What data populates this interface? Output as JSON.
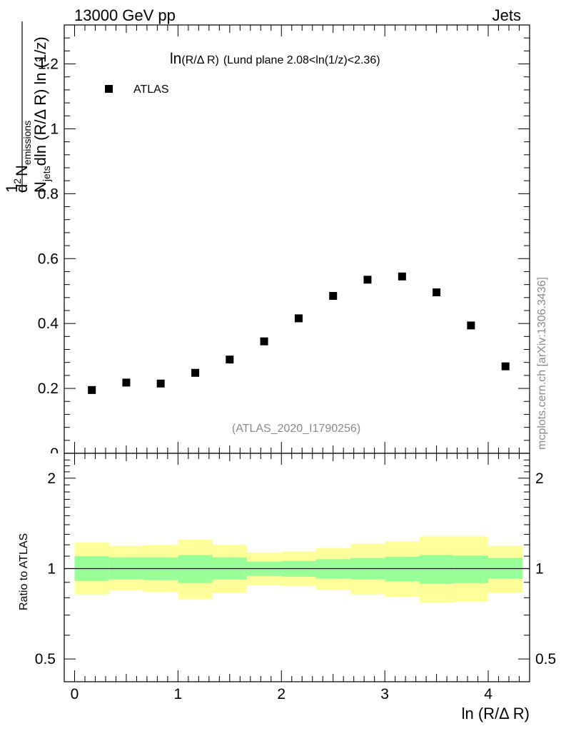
{
  "header": {
    "left": "13000 GeV pp",
    "right": "Jets"
  },
  "side_text": "mcplots.cern.ch [arXiv:1306.3436]",
  "analysis_id": "(ATLAS_2020_I1790256)",
  "chart_data": [
    {
      "type": "scatter",
      "title_ln": "ln",
      "title_arg": "(R/Δ R)",
      "title_rest": "(Lund plane 2.08<ln(1/z)<2.36)",
      "ylabel": {
        "prefix": "1",
        "N": "N",
        "jets": "jets",
        "dln": "dln (R/Δ R) ln (1/z)",
        "d2": "d",
        "two": "2",
        "Nem": "N",
        "emissions": "emissions"
      },
      "xlim": [
        -0.1,
        4.4
      ],
      "ylim": [
        0,
        1.32
      ],
      "yticks": [
        "0.2",
        "0.4",
        "0.6",
        "0.8",
        "1",
        "1.2"
      ],
      "y_zero_label": "0",
      "legend": {
        "label": "ATLAS",
        "position": "top-left"
      },
      "series": [
        {
          "name": "ATLAS",
          "x": [
            0.167,
            0.5,
            0.833,
            1.167,
            1.5,
            1.833,
            2.167,
            2.5,
            2.833,
            3.167,
            3.5,
            3.833,
            4.167
          ],
          "y": [
            0.195,
            0.218,
            0.215,
            0.248,
            0.289,
            0.345,
            0.416,
            0.485,
            0.535,
            0.545,
            0.496,
            0.394,
            0.268
          ]
        }
      ]
    },
    {
      "type": "area",
      "ylabel": "Ratio to ATLAS",
      "xlabel": "ln (R/Δ R)",
      "xlim": [
        -0.1,
        4.4
      ],
      "ylim": [
        0.42,
        2.42
      ],
      "log_y": true,
      "yticks": [
        "0.5",
        "1",
        "2"
      ],
      "xticks": [
        "0",
        "1",
        "2",
        "3",
        "4"
      ],
      "colors": {
        "stat": "#99ff99",
        "total": "#ffff99",
        "line": "#000000"
      },
      "bands": {
        "edges": [
          0.0,
          0.333,
          0.667,
          1.0,
          1.333,
          1.667,
          2.0,
          2.333,
          2.667,
          3.0,
          3.333,
          3.667,
          4.0,
          4.333
        ],
        "inner_lo": [
          0.91,
          0.92,
          0.915,
          0.895,
          0.92,
          0.945,
          0.94,
          0.925,
          0.92,
          0.905,
          0.89,
          0.895,
          0.925
        ],
        "inner_hi": [
          1.1,
          1.09,
          1.09,
          1.11,
          1.09,
          1.055,
          1.06,
          1.075,
          1.085,
          1.095,
          1.11,
          1.105,
          1.085
        ],
        "outer_lo": [
          0.82,
          0.845,
          0.835,
          0.79,
          0.83,
          0.88,
          0.875,
          0.85,
          0.82,
          0.805,
          0.77,
          0.775,
          0.83
        ],
        "outer_hi": [
          1.22,
          1.19,
          1.2,
          1.25,
          1.2,
          1.13,
          1.14,
          1.17,
          1.21,
          1.23,
          1.28,
          1.28,
          1.19
        ]
      },
      "reference": 1.0
    }
  ]
}
